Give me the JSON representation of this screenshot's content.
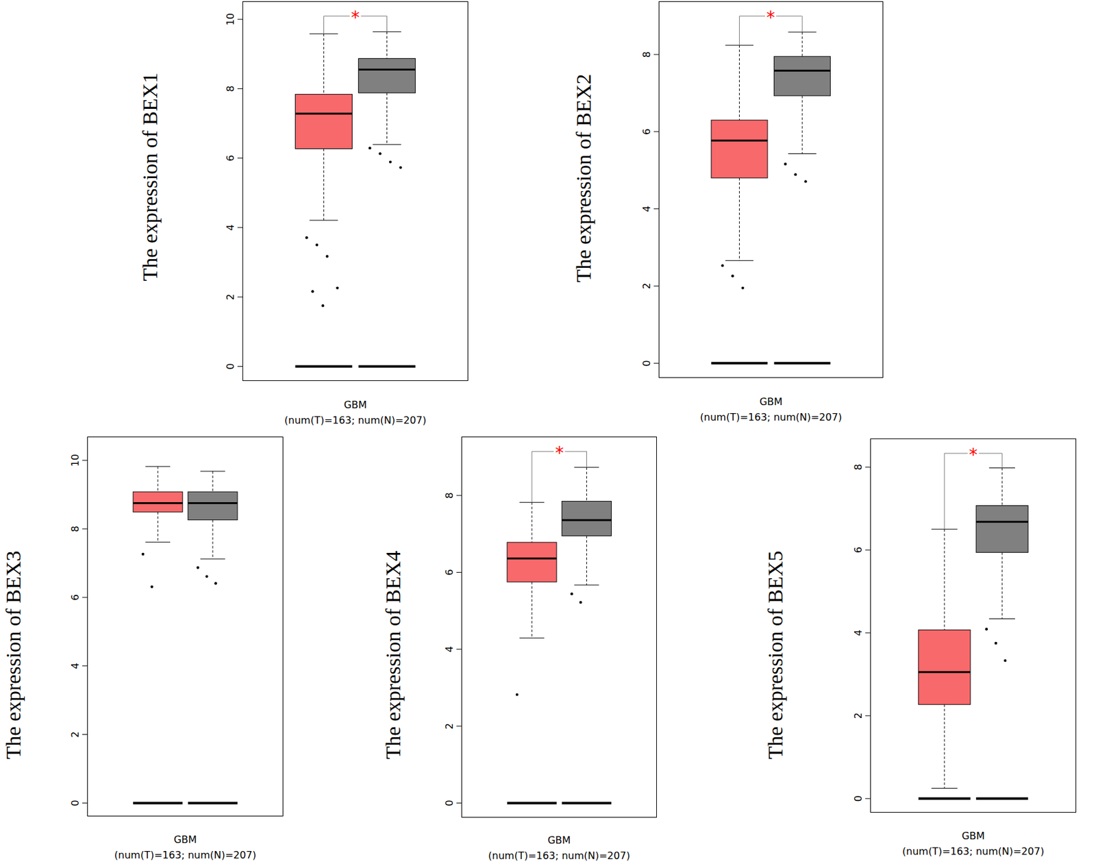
{
  "chart_data": [
    {
      "type": "box",
      "ylabel": "The expression of BEX1",
      "xlabel": "GBM\n(num(T)=163; num(N)=207)",
      "ylim": [
        -0.42,
        10.52
      ],
      "yticks": [
        0,
        2,
        4,
        6,
        8,
        10
      ],
      "tick_labels": "y",
      "baseline": 0,
      "significance": "*",
      "boxes": [
        {
          "color": "#f8696b",
          "whisker_low": 4.21,
          "q1": 6.27,
          "median": 7.28,
          "q3": 7.84,
          "whisker_high": 9.58,
          "points": [
            3.71,
            3.5,
            3.17,
            2.26,
            2.16,
            1.75
          ]
        },
        {
          "color": "#808080",
          "whisker_low": 6.39,
          "q1": 7.88,
          "median": 8.55,
          "q3": 8.87,
          "whisker_high": 9.64,
          "points": [
            6.29,
            6.13,
            5.89,
            5.73
          ]
        }
      ]
    },
    {
      "type": "box",
      "ylabel": "The expression of BEX2",
      "xlabel": "GBM\n(num(T)=163; num(N)=207)",
      "ylim": [
        -0.38,
        9.38
      ],
      "yticks": [
        0,
        2,
        4,
        6,
        8
      ],
      "tick_labels": "y",
      "baseline": 0,
      "significance": "*",
      "boxes": [
        {
          "color": "#f8696b",
          "whisker_low": 2.66,
          "q1": 4.8,
          "median": 5.77,
          "q3": 6.3,
          "whisker_high": 8.24,
          "points": [
            2.53,
            2.26,
            1.95
          ]
        },
        {
          "color": "#808080",
          "whisker_low": 5.43,
          "q1": 6.93,
          "median": 7.58,
          "q3": 7.95,
          "whisker_high": 8.58,
          "points": [
            5.16,
            4.89,
            4.71
          ]
        }
      ]
    },
    {
      "type": "box",
      "ylabel": "The expression of BEX3",
      "xlabel": "GBM\n(num(T)=163; num(N)=207)",
      "ylim": [
        -0.39,
        10.69
      ],
      "yticks": [
        0,
        2,
        4,
        6,
        8,
        10
      ],
      "tick_labels": "y",
      "baseline": 0,
      "boxes": [
        {
          "color": "#f8696b",
          "whisker_low": 7.61,
          "q1": 8.49,
          "median": 8.75,
          "q3": 9.08,
          "whisker_high": 9.82,
          "points": [
            7.26,
            6.31
          ]
        },
        {
          "color": "#808080",
          "whisker_low": 7.12,
          "q1": 8.26,
          "median": 8.75,
          "q3": 9.08,
          "whisker_high": 9.68,
          "points": [
            6.87,
            6.61,
            6.41
          ]
        }
      ]
    },
    {
      "type": "box",
      "ylabel": "The expression of BEX4",
      "xlabel": "GBM\n(num(T)=163; num(N)=207)",
      "ylim": [
        -0.38,
        9.53
      ],
      "yticks": [
        0,
        2,
        4,
        6,
        8
      ],
      "tick_labels": "y",
      "baseline": 0,
      "significance": "*",
      "boxes": [
        {
          "color": "#f8696b",
          "whisker_low": 4.29,
          "q1": 5.75,
          "median": 6.36,
          "q3": 6.78,
          "whisker_high": 7.82,
          "points": [
            2.82
          ]
        },
        {
          "color": "#808080",
          "whisker_low": 5.67,
          "q1": 6.95,
          "median": 7.36,
          "q3": 7.85,
          "whisker_high": 8.73,
          "points": [
            5.44,
            5.22
          ]
        }
      ]
    },
    {
      "type": "box",
      "ylabel": "The expression of BEX5",
      "xlabel": "GBM\n(num(T)=163; num(N)=207)",
      "ylim": [
        -0.34,
        8.69
      ],
      "yticks": [
        0,
        2,
        4,
        6,
        8
      ],
      "tick_labels": "y",
      "baseline": 0,
      "significance": "*",
      "boxes": [
        {
          "color": "#f8696b",
          "whisker_low": 0.25,
          "q1": 2.27,
          "median": 3.05,
          "q3": 4.07,
          "whisker_high": 6.5,
          "points": []
        },
        {
          "color": "#808080",
          "whisker_low": 4.34,
          "q1": 5.94,
          "median": 6.68,
          "q3": 7.07,
          "whisker_high": 7.98,
          "points": [
            4.09,
            3.75,
            3.33
          ]
        }
      ]
    }
  ]
}
